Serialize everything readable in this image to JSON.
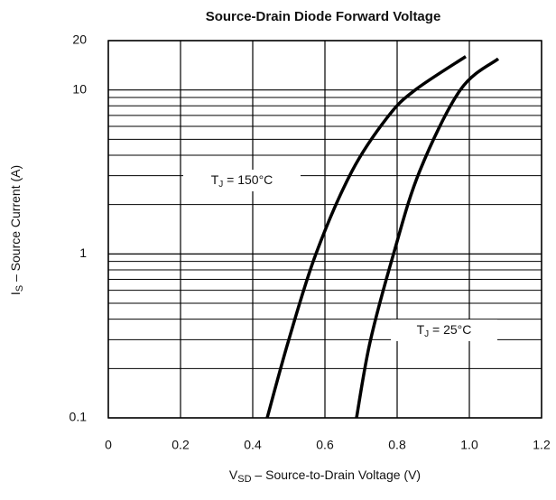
{
  "chart_data": {
    "type": "line",
    "title": "Source-Drain Diode Forward Voltage",
    "x_label": {
      "main": "V",
      "sub": "SD",
      "rest": "  –  Source-to-Drain Voltage (V)"
    },
    "y_label": {
      "main": "I",
      "sub": "S",
      "rest": "  –  Source Current (A)"
    },
    "xlim": [
      0,
      1.2
    ],
    "xticks": [
      0,
      0.2,
      0.4,
      0.6,
      0.8,
      {
        "value": 1,
        "label": "1.0"
      },
      1.2
    ],
    "ylim": [
      0.1,
      20
    ],
    "y_log": true,
    "yticks": [
      0.1,
      1,
      10,
      20
    ],
    "y_minor_grid": [
      0.2,
      0.3,
      0.4,
      0.5,
      0.6,
      0.7,
      0.8,
      0.9,
      2,
      3,
      4,
      5,
      6,
      7,
      8,
      9
    ],
    "grid": true,
    "series": [
      {
        "color": "#000000",
        "x": [
          0.44,
          0.5,
          0.575,
          0.675,
          0.775,
          0.85,
          0.99
        ],
        "values": [
          0.1,
          0.3,
          1,
          3.2,
          6.9,
          10,
          16
        ]
      },
      {
        "color": "#000000",
        "x": [
          0.6875,
          0.725,
          0.79,
          0.8625,
          0.975,
          1.08
        ],
        "values": [
          0.1,
          0.29,
          1,
          3.2,
          10,
          15.5
        ]
      }
    ],
    "annotations": [
      {
        "main": "T",
        "sub": "J",
        "rest": " = 150°C"
      },
      {
        "main": "T",
        "sub": "J",
        "rest": " = 25°C"
      }
    ]
  }
}
